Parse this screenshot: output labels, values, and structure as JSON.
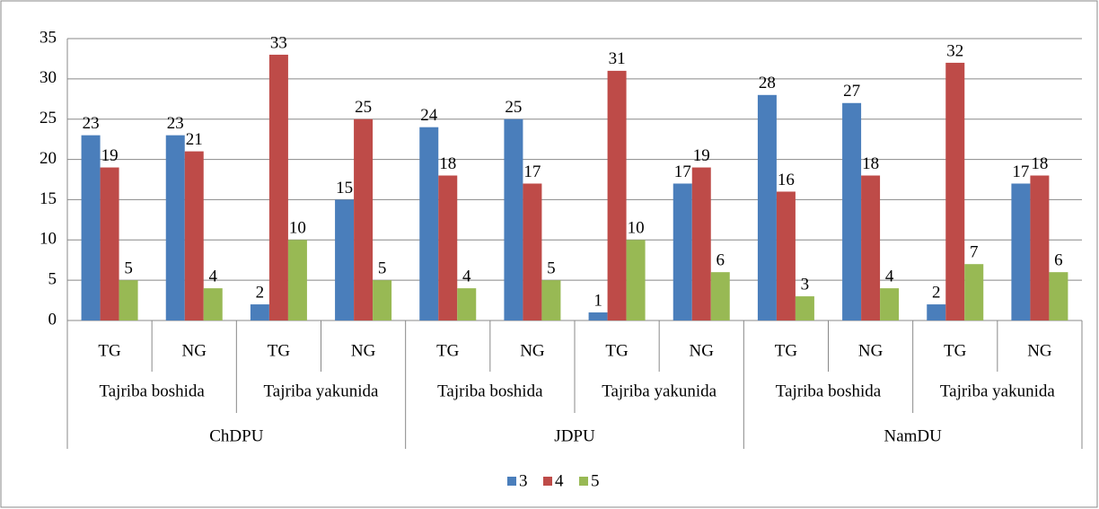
{
  "chart_data": {
    "type": "bar",
    "categories": [
      "TG",
      "NG",
      "TG",
      "NG",
      "TG",
      "NG",
      "TG",
      "NG",
      "TG",
      "NG",
      "TG",
      "NG"
    ],
    "category_groups": [
      "Tajriba boshida",
      "Tajriba yakunida",
      "Tajriba boshida",
      "Tajriba yakunida",
      "Tajriba boshida",
      "Tajriba yakunida"
    ],
    "category_supergroups": [
      "ChDPU",
      "JDPU",
      "NamDU"
    ],
    "series": [
      {
        "name": "3",
        "color": "#4a7ebb",
        "values": [
          23,
          23,
          2,
          15,
          24,
          25,
          1,
          17,
          28,
          27,
          2,
          17
        ]
      },
      {
        "name": "4",
        "color": "#be4b48",
        "values": [
          19,
          21,
          33,
          25,
          18,
          17,
          31,
          19,
          16,
          18,
          32,
          18
        ]
      },
      {
        "name": "5",
        "color": "#98b954",
        "values": [
          5,
          4,
          10,
          5,
          4,
          5,
          10,
          6,
          3,
          4,
          7,
          6
        ]
      }
    ],
    "ylim": [
      0,
      35
    ],
    "yticks": [
      0,
      5,
      10,
      15,
      20,
      25,
      30,
      35
    ],
    "grid": true,
    "legend": "bottom"
  }
}
